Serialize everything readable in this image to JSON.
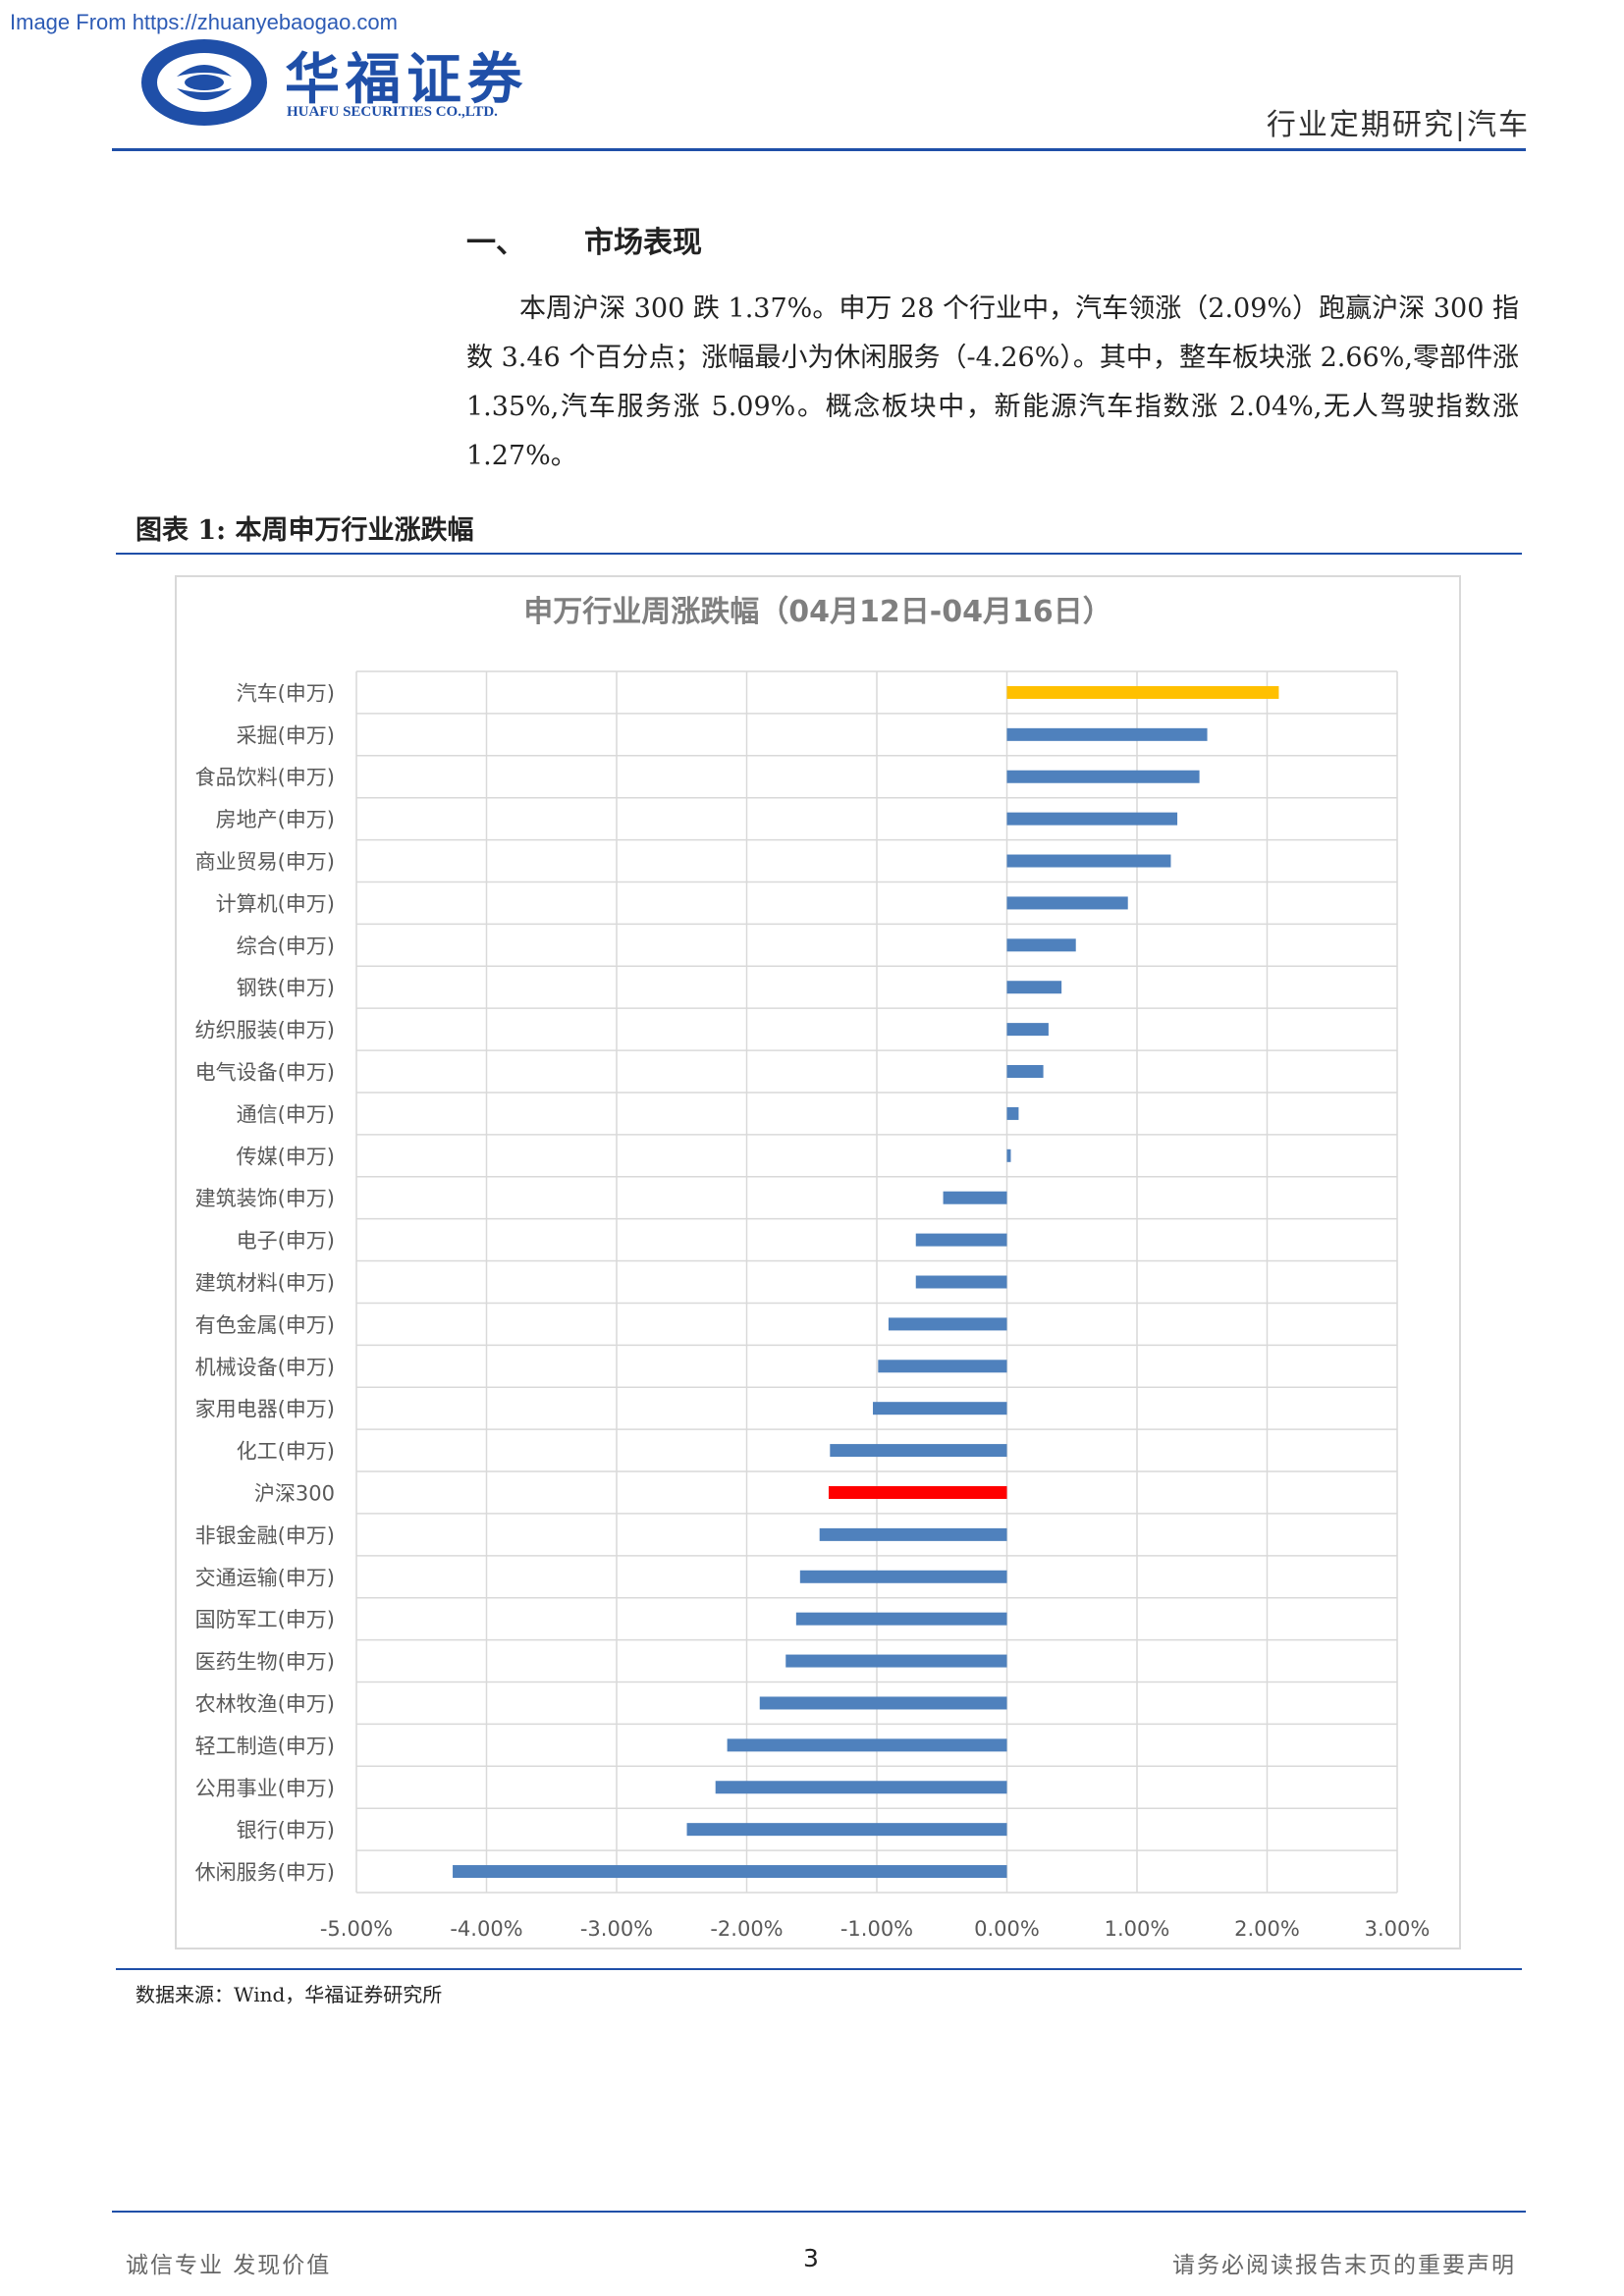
{
  "watermark": "Image From https://zhuanyebaogao.com",
  "logo": {
    "name_cn": "华福证券",
    "name_en": "HUAFU SECURITIES CO.,LTD."
  },
  "header": {
    "right_title": "行业定期研究|汽车"
  },
  "section": {
    "number": "一、",
    "title": "市场表现"
  },
  "paragraph": "本周沪深 300 跌 1.37%。申万 28 个行业中，汽车领涨（2.09%）跑赢沪深 300 指数 3.46 个百分点；涨幅最小为休闲服务（-4.26%）。其中，整车板块涨 2.66%,零部件涨 1.35%,汽车服务涨 5.09%。概念板块中，新能源汽车指数涨 2.04%,无人驾驶指数涨 1.27%。",
  "figure": {
    "title": "图表 1:  本周申万行业涨跌幅",
    "source": "数据来源：Wind，华福证券研究所"
  },
  "chart_data": {
    "type": "bar",
    "orientation": "horizontal",
    "title": "申万行业周涨跌幅（04月12日-04月16日）",
    "categories": [
      "汽车(申万)",
      "采掘(申万)",
      "食品饮料(申万)",
      "房地产(申万)",
      "商业贸易(申万)",
      "计算机(申万)",
      "综合(申万)",
      "钢铁(申万)",
      "纺织服装(申万)",
      "电气设备(申万)",
      "通信(申万)",
      "传媒(申万)",
      "建筑装饰(申万)",
      "电子(申万)",
      "建筑材料(申万)",
      "有色金属(申万)",
      "机械设备(申万)",
      "家用电器(申万)",
      "化工(申万)",
      "沪深300",
      "非银金融(申万)",
      "交通运输(申万)",
      "国防军工(申万)",
      "医药生物(申万)",
      "农林牧渔(申万)",
      "轻工制造(申万)",
      "公用事业(申万)",
      "银行(申万)",
      "休闲服务(申万)"
    ],
    "values": [
      2.09,
      1.54,
      1.48,
      1.31,
      1.26,
      0.93,
      0.53,
      0.42,
      0.32,
      0.28,
      0.09,
      0.03,
      -0.49,
      -0.7,
      -0.7,
      -0.91,
      -0.99,
      -1.03,
      -1.36,
      -1.37,
      -1.44,
      -1.59,
      -1.62,
      -1.7,
      -1.9,
      -2.15,
      -2.24,
      -2.46,
      -4.26
    ],
    "highlight": {
      "汽车(申万)": "#ffc000",
      "沪深300": "#ff0000"
    },
    "bar_color": "#4f81bd",
    "xlim": [
      -5,
      3
    ],
    "xticks": [
      "-5.00%",
      "-4.00%",
      "-3.00%",
      "-2.00%",
      "-1.00%",
      "0.00%",
      "1.00%",
      "2.00%",
      "3.00%"
    ],
    "grid": true,
    "legend": "none"
  },
  "footer": {
    "left": "诚信专业  发现价值",
    "page": "3",
    "right": "请务必阅读报告末页的重要声明"
  }
}
